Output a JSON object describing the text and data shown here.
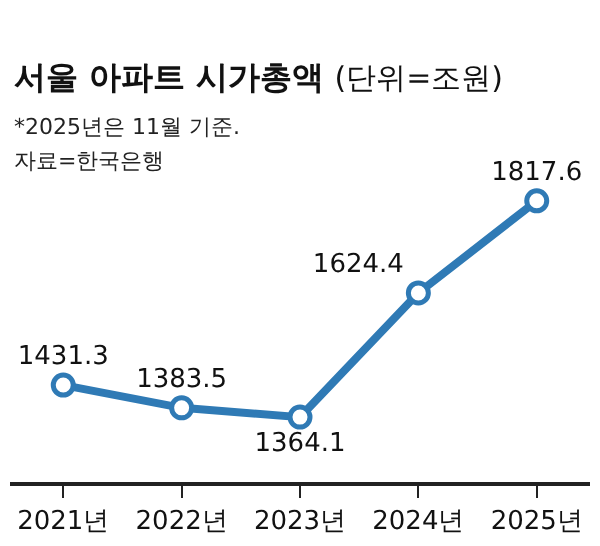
{
  "chart_data": {
    "type": "line",
    "title": "서울 아파트 시가총액",
    "subtitle": "(단위=조원)",
    "annotations": [
      "*2025년은 11월 기준.",
      "자료=한국은행"
    ],
    "categories": [
      "2021년",
      "2022년",
      "2023년",
      "2024년",
      "2025년"
    ],
    "series": [
      {
        "color": "#2f7ab5",
        "values": [
          1431.3,
          1383.5,
          1364.1,
          1624.4,
          1817.6
        ]
      }
    ],
    "data_labels": true,
    "marker": "circle",
    "line_style": "solid",
    "tick_labels": "x"
  }
}
